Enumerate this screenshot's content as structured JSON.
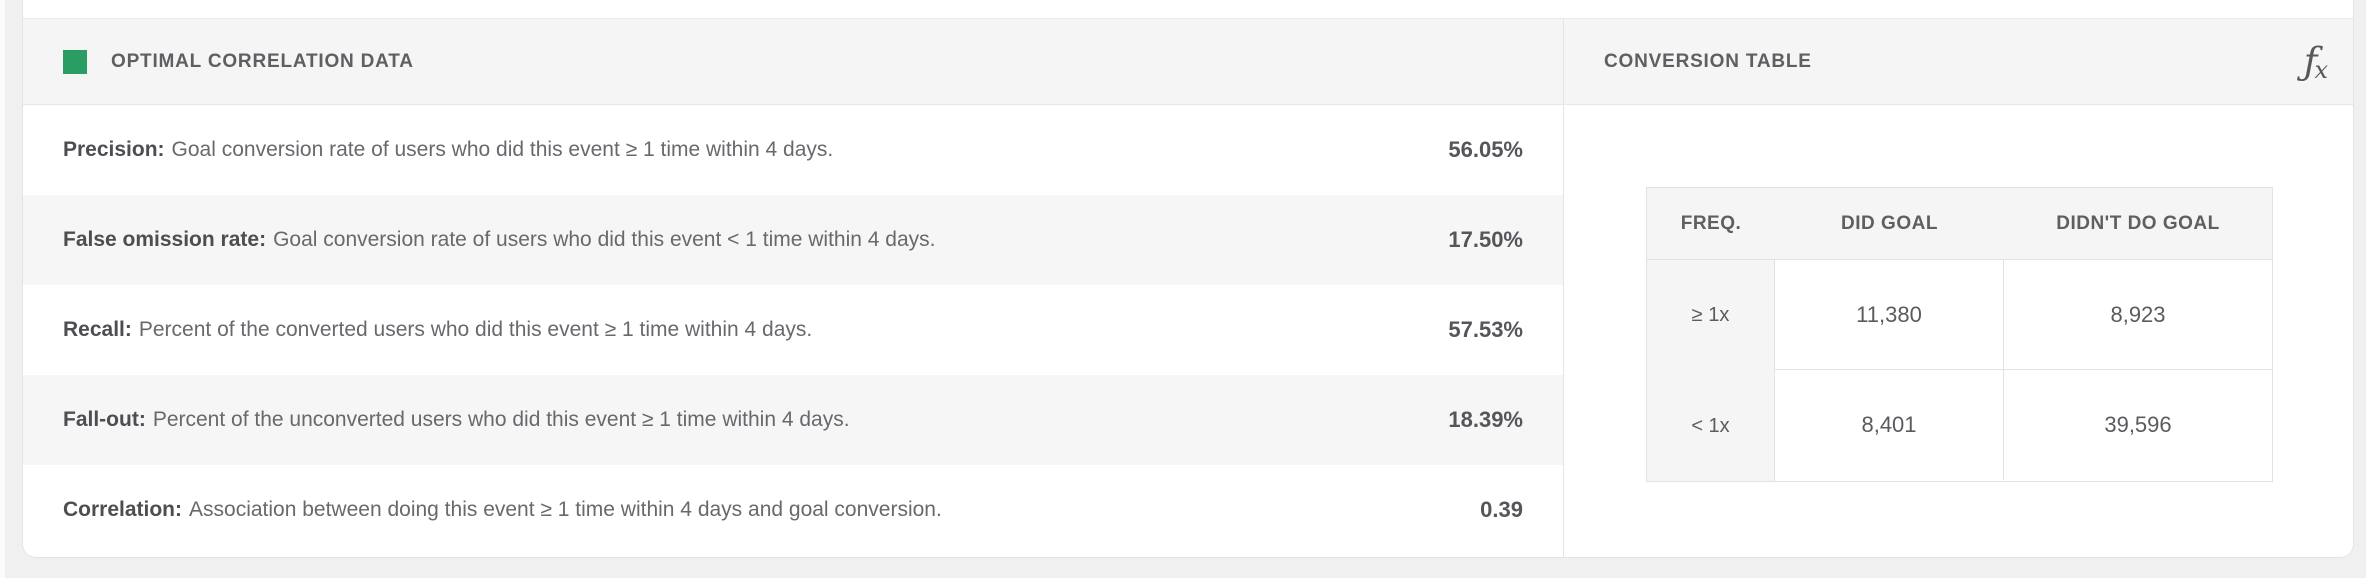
{
  "colors": {
    "accent_green": "#2a9d63",
    "panel_header_bg": "#f5f5f5",
    "row_alt_bg": "#f6f6f7",
    "border": "#e2e2e3",
    "page_bg": "#f0f0f0"
  },
  "left_panel": {
    "title": "OPTIMAL CORRELATION DATA",
    "rows": [
      {
        "label": "Precision:",
        "description": "Goal conversion rate of users who did this event ≥ 1 time within 4 days.",
        "value": "56.05%"
      },
      {
        "label": "False omission rate:",
        "description": "Goal conversion rate of users who did this event < 1 time within 4 days.",
        "value": "17.50%"
      },
      {
        "label": "Recall:",
        "description": "Percent of the converted users who did this event ≥ 1 time within 4 days.",
        "value": "57.53%"
      },
      {
        "label": "Fall-out:",
        "description": "Percent of the unconverted users who did this event ≥ 1 time within 4 days.",
        "value": "18.39%"
      },
      {
        "label": "Correlation:",
        "description": "Association between doing this event ≥ 1 time within 4 days and goal conversion.",
        "value": "0.39"
      }
    ]
  },
  "right_panel": {
    "title": "CONVERSION TABLE",
    "table": {
      "headers": [
        "FREQ.",
        "DID GOAL",
        "DIDN'T DO GOAL"
      ],
      "rows": [
        {
          "freq": "≥ 1x",
          "did_goal": "11,380",
          "didnt_do_goal": "8,923"
        },
        {
          "freq": "< 1x",
          "did_goal": "8,401",
          "didnt_do_goal": "39,596"
        }
      ]
    }
  },
  "icons": {
    "fx_f": "ƒ",
    "fx_x": "x"
  }
}
